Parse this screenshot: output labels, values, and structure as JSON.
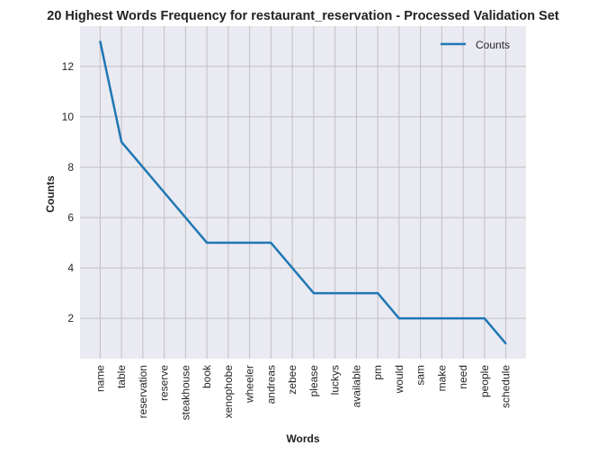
{
  "chart_data": {
    "type": "line",
    "title": "20 Highest Words Frequency for restaurant_reservation - Processed Validation Set",
    "xlabel": "Words",
    "ylabel": "Counts",
    "categories": [
      "name",
      "table",
      "reservation",
      "reserve",
      "steakhouse",
      "book",
      "xenophobe",
      "wheeler",
      "andreas",
      "zebee",
      "please",
      "luckys",
      "available",
      "pm",
      "would",
      "sam",
      "make",
      "need",
      "people",
      "schedule"
    ],
    "series": [
      {
        "name": "Counts",
        "values": [
          13,
          9,
          8,
          7,
          6,
          5,
          5,
          5,
          5,
          4,
          3,
          3,
          3,
          3,
          2,
          2,
          2,
          2,
          2,
          1
        ]
      }
    ],
    "ylim": [
      0.4,
      13.6
    ],
    "yticks": [
      2,
      4,
      6,
      8,
      10,
      12
    ],
    "grid": true,
    "legend_position": "top-right",
    "colors": {
      "line": "#1f77b4",
      "plot_background": "#eaeaf2",
      "grid": "#c0c0c0"
    }
  }
}
